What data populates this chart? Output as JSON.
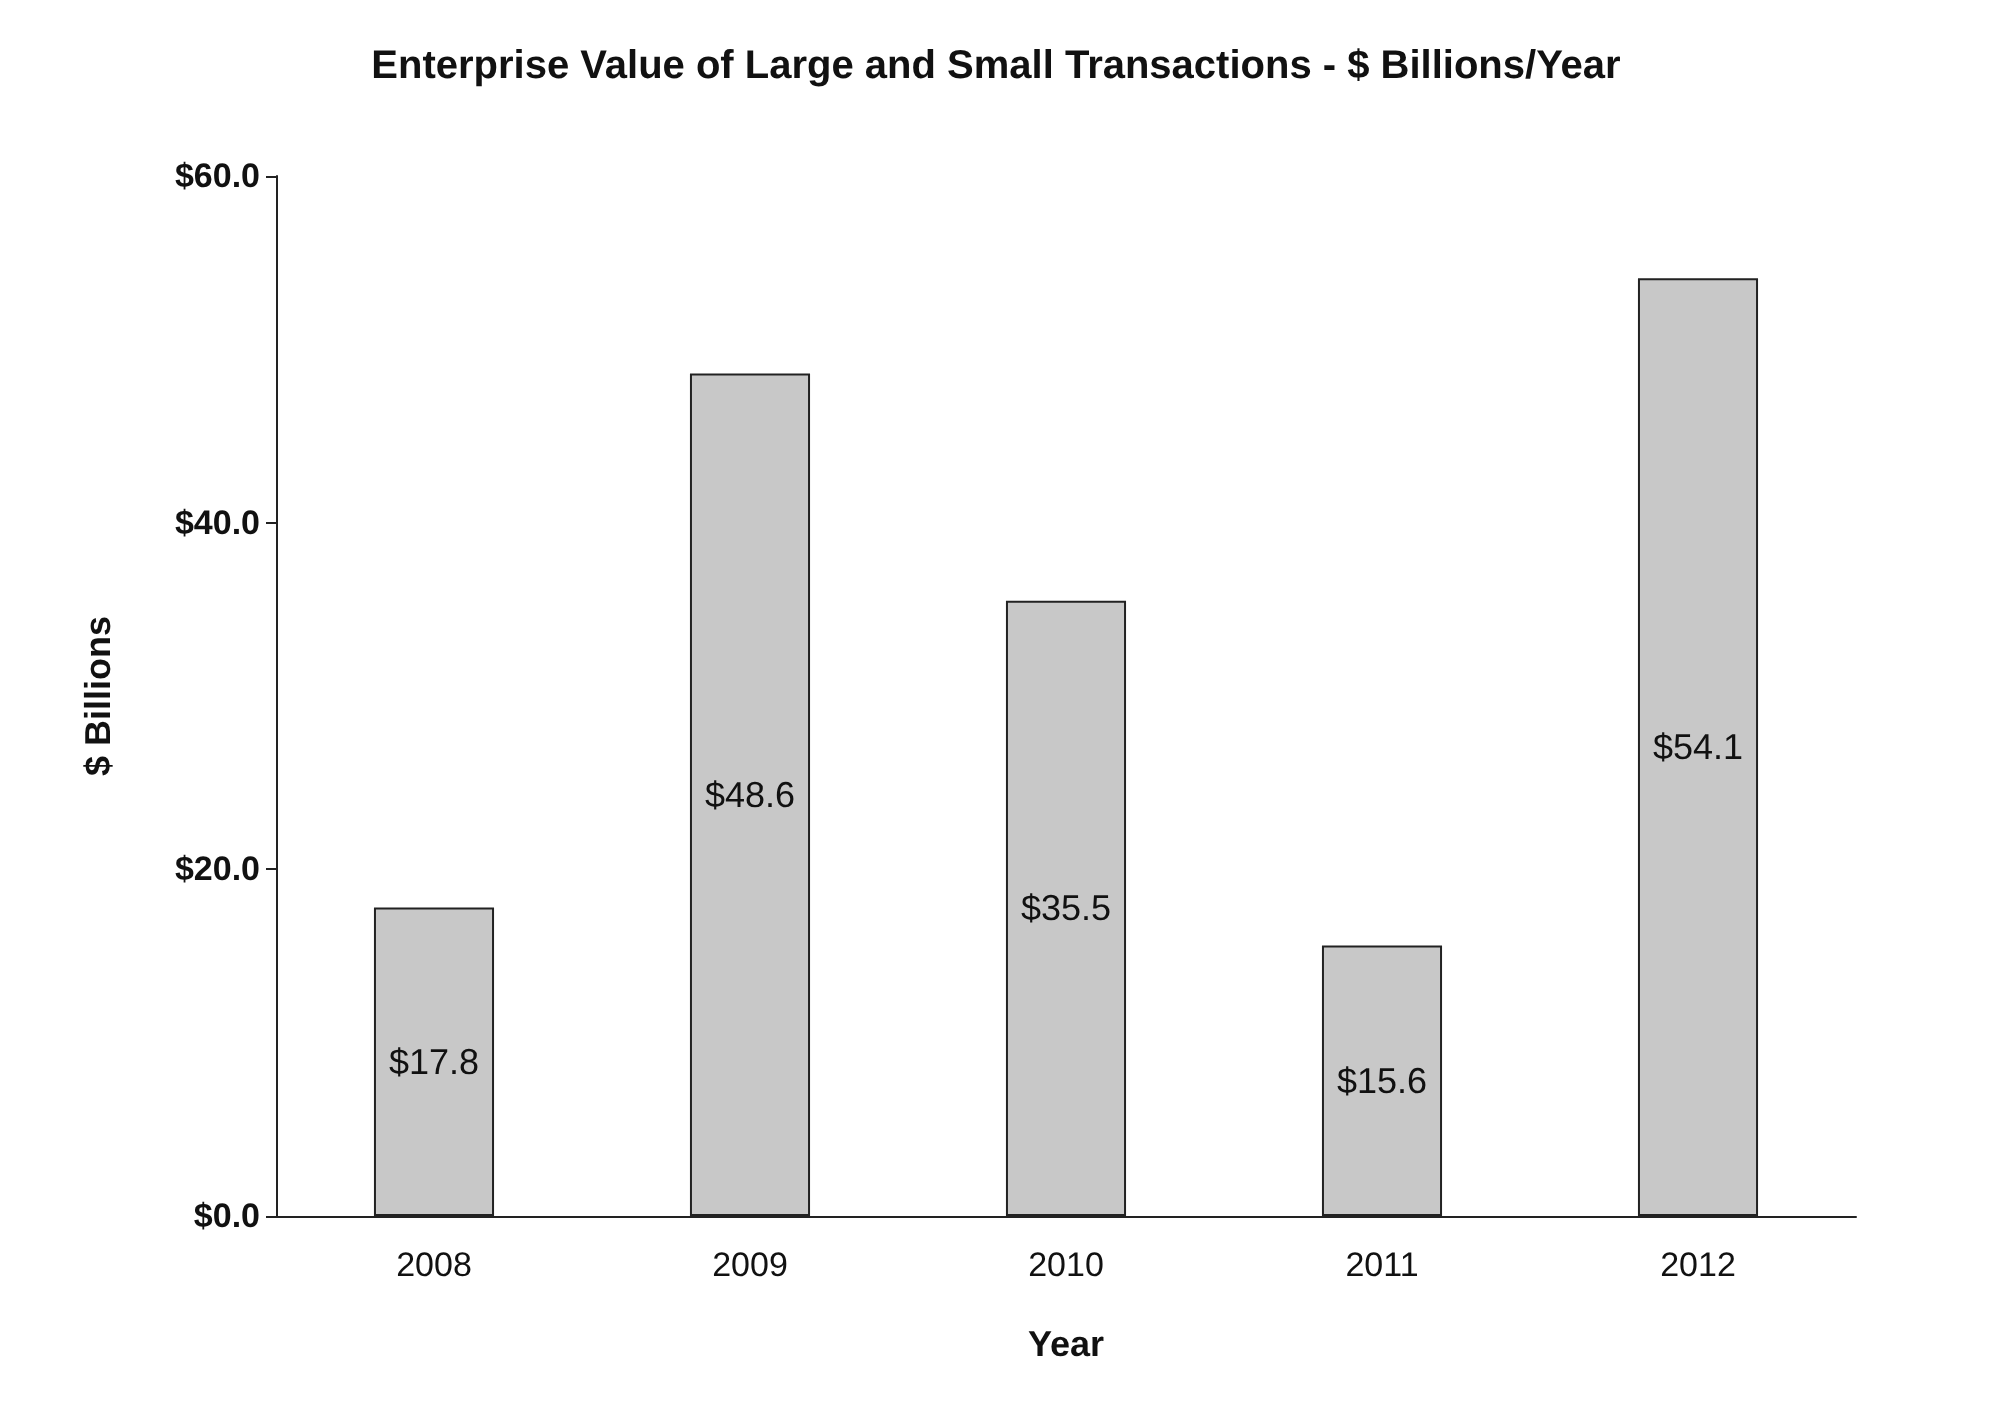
{
  "chart_data": {
    "type": "bar",
    "title": "Enterprise Value of Large and Small Transactions - $ Billions/Year",
    "xlabel": "Year",
    "ylabel": "$ Billions",
    "categories": [
      "2008",
      "2009",
      "2010",
      "2011",
      "2012"
    ],
    "values": [
      17.8,
      48.6,
      35.5,
      15.6,
      54.1
    ],
    "value_labels": [
      "$17.8",
      "$48.6",
      "$35.5",
      "$15.6",
      "$54.1"
    ],
    "color": "#c8c8c8",
    "ylim": [
      0,
      60
    ],
    "yticks": [
      {
        "value": 0,
        "label": "$0.0"
      },
      {
        "value": 20,
        "label": "$20.0"
      },
      {
        "value": 40,
        "label": "$40.0"
      },
      {
        "value": 60,
        "label": "$60.0"
      }
    ],
    "grid": false
  }
}
